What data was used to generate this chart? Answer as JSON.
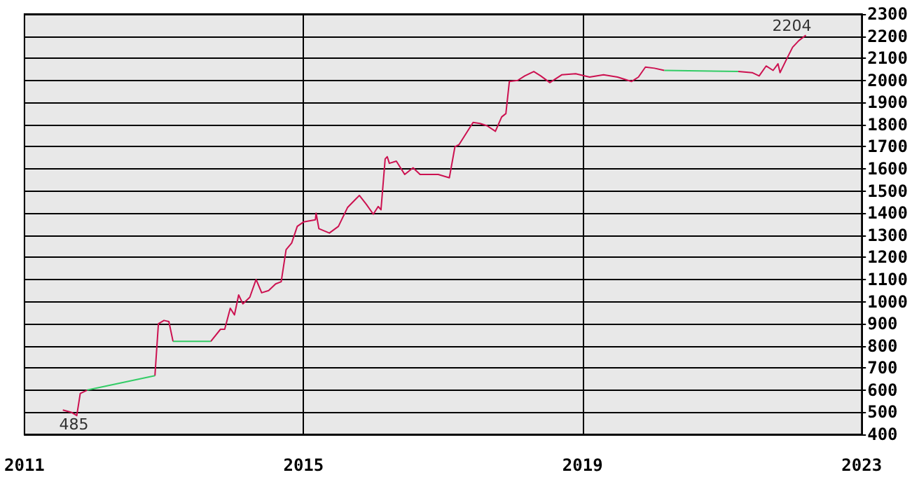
{
  "chart_data": {
    "type": "line",
    "series": [
      {
        "color": "#cc1150",
        "x": [
          2011.55,
          2011.67,
          2011.75,
          2011.8,
          2011.9,
          2012.4,
          2012.87,
          2012.92,
          2013.0,
          2013.07,
          2013.13,
          2013.4,
          2013.67,
          2013.81,
          2013.87,
          2013.95,
          2014.01,
          2014.07,
          2014.13,
          2014.23,
          2014.32,
          2014.4,
          2014.5,
          2014.6,
          2014.68,
          2014.75,
          2014.83,
          2014.91,
          2015.0,
          2015.17,
          2015.18,
          2015.22,
          2015.37,
          2015.5,
          2015.63,
          2015.8,
          2015.9,
          2016.0,
          2016.07,
          2016.11,
          2016.17,
          2016.2,
          2016.23,
          2016.33,
          2016.45,
          2016.57,
          2016.67,
          2016.8,
          2016.93,
          2017.09,
          2017.17,
          2017.23,
          2017.43,
          2017.53,
          2017.63,
          2017.75,
          2017.84,
          2017.9,
          2017.95,
          2018.07,
          2018.17,
          2018.3,
          2018.4,
          2018.53,
          2018.7,
          2018.9,
          2019.1,
          2019.3,
          2019.5,
          2019.7,
          2019.8,
          2019.9,
          2020.03,
          2020.17,
          2020.7,
          2021.23,
          2021.43,
          2021.53,
          2021.63,
          2021.73,
          2021.8,
          2021.83,
          2021.93,
          2022.01,
          2022.1,
          2022.2
        ],
        "values": [
          510,
          500,
          485,
          585,
          600,
          null,
          665,
          900,
          915,
          910,
          820,
          null,
          820,
          875,
          875,
          970,
          940,
          1030,
          990,
          1020,
          1100,
          1040,
          1050,
          1080,
          1090,
          1235,
          1265,
          1340,
          1360,
          1370,
          1400,
          1330,
          1310,
          1340,
          1425,
          1480,
          1440,
          1395,
          1430,
          1415,
          1645,
          1655,
          1625,
          1635,
          1575,
          1605,
          1575,
          1575,
          1575,
          1560,
          1700,
          1710,
          1810,
          1805,
          1795,
          1770,
          1835,
          1850,
          1995,
          2000,
          2020,
          2040,
          2020,
          1990,
          2025,
          2030,
          2015,
          2025,
          2015,
          1995,
          2015,
          2060,
          2055,
          2045,
          null,
          2040,
          2035,
          2020,
          2065,
          2045,
          2075,
          2035,
          2100,
          2150,
          2180,
          2204
        ]
      },
      {
        "color": "#33cc66",
        "x": [
          2011.9,
          2012.87,
          2013.0,
          2013.13,
          2013.67,
          2019.0,
          2020.17,
          2021.23
        ],
        "values": [
          600,
          665,
          null,
          820,
          820,
          null,
          2045,
          2040
        ]
      }
    ],
    "xlim": [
      2011,
      2023
    ],
    "xticks": [
      2011,
      2015,
      2019,
      2023
    ],
    "ylim": [
      400,
      2300
    ],
    "yticks": [
      400,
      500,
      600,
      700,
      800,
      900,
      1000,
      1100,
      1200,
      1300,
      1400,
      1500,
      1600,
      1700,
      1800,
      1900,
      2000,
      2100,
      2200,
      2300
    ],
    "grid": true,
    "annotations": [
      {
        "text": "485",
        "x": 2011.75,
        "y": 485
      },
      {
        "text": "2204",
        "x": 2022.2,
        "y": 2204
      }
    ]
  }
}
